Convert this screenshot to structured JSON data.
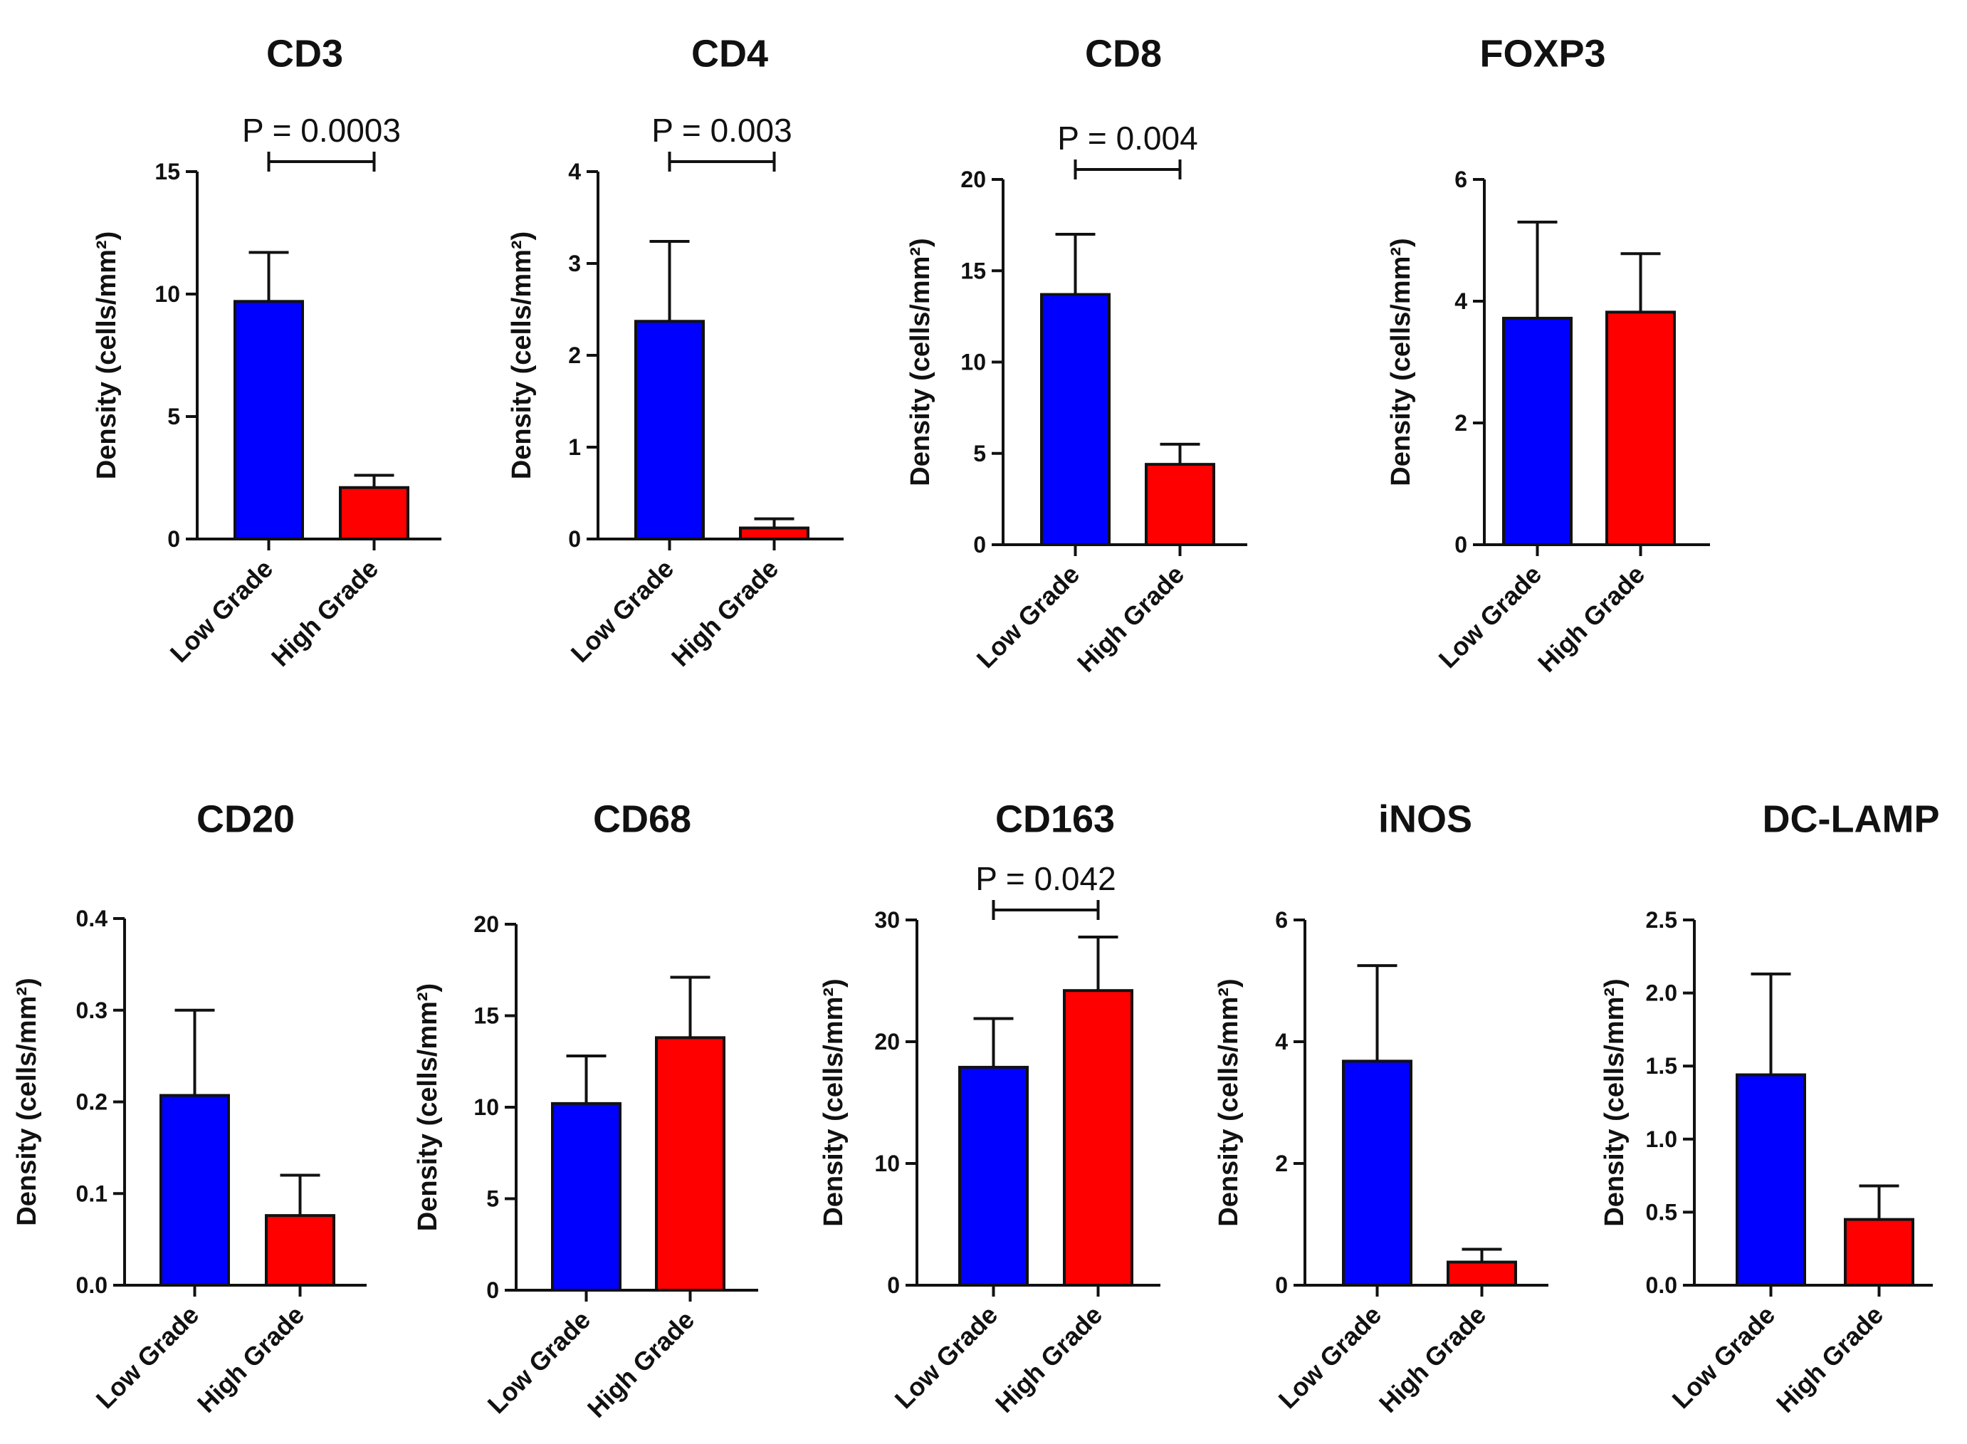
{
  "chart_data": [
    {
      "type": "bar",
      "title": "CD3",
      "ylabel": "Density (cells/mm²)",
      "categories": [
        "Low Grade",
        "High Grade"
      ],
      "values": [
        9.7,
        2.1
      ],
      "errors": [
        2.0,
        0.5
      ],
      "ylim": [
        0,
        15
      ],
      "yticks": [
        0,
        5,
        10,
        15
      ],
      "ytick_labels": [
        "0",
        "5",
        "10",
        "15"
      ],
      "pvalue": "P = 0.0003"
    },
    {
      "type": "bar",
      "title": "CD4",
      "ylabel": "Density (cells/mm²)",
      "categories": [
        "Low Grade",
        "High Grade"
      ],
      "values": [
        2.37,
        0.12
      ],
      "errors": [
        0.87,
        0.1
      ],
      "ylim": [
        0,
        4
      ],
      "yticks": [
        0,
        1,
        2,
        3,
        4
      ],
      "ytick_labels": [
        "0",
        "1",
        "2",
        "3",
        "4"
      ],
      "pvalue": "P = 0.003"
    },
    {
      "type": "bar",
      "title": "CD8",
      "ylabel": "Density (cells/mm²)",
      "categories": [
        "Low Grade",
        "High Grade"
      ],
      "values": [
        13.7,
        4.4
      ],
      "errors": [
        3.3,
        1.1
      ],
      "ylim": [
        0,
        20
      ],
      "yticks": [
        0,
        5,
        10,
        15,
        20
      ],
      "ytick_labels": [
        "0",
        "5",
        "10",
        "15",
        "20"
      ],
      "pvalue": "P = 0.004"
    },
    {
      "type": "bar",
      "title": "FOXP3",
      "ylabel": "Density (cells/mm²)",
      "categories": [
        "Low Grade",
        "High Grade"
      ],
      "values": [
        3.72,
        3.82
      ],
      "errors": [
        1.58,
        0.96
      ],
      "ylim": [
        0,
        6
      ],
      "yticks": [
        0,
        2,
        4,
        6
      ],
      "ytick_labels": [
        "0",
        "2",
        "4",
        "6"
      ],
      "pvalue": ""
    },
    {
      "type": "bar",
      "title": "CD20",
      "ylabel": "Density (cells/mm²)",
      "categories": [
        "Low Grade",
        "High Grade"
      ],
      "values": [
        0.207,
        0.076
      ],
      "errors": [
        0.093,
        0.044
      ],
      "ylim": [
        0,
        0.4
      ],
      "yticks": [
        0,
        0.1,
        0.2,
        0.3,
        0.4
      ],
      "ytick_labels": [
        "0.0",
        "0.1",
        "0.2",
        "0.3",
        "0.4"
      ],
      "pvalue": ""
    },
    {
      "type": "bar",
      "title": "CD68",
      "ylabel": "Density (cells/mm²)",
      "categories": [
        "Low Grade",
        "High Grade"
      ],
      "values": [
        10.2,
        13.8
      ],
      "errors": [
        2.6,
        3.3
      ],
      "ylim": [
        0,
        20
      ],
      "yticks": [
        0,
        5,
        10,
        15,
        20
      ],
      "ytick_labels": [
        "0",
        "5",
        "10",
        "15",
        "20"
      ],
      "pvalue": ""
    },
    {
      "type": "bar",
      "title": "CD163",
      "ylabel": "Density (cells/mm²)",
      "categories": [
        "Low Grade",
        "High Grade"
      ],
      "values": [
        17.9,
        24.2
      ],
      "errors": [
        4.0,
        4.4
      ],
      "ylim": [
        0,
        30
      ],
      "yticks": [
        0,
        10,
        20,
        30
      ],
      "ytick_labels": [
        "0",
        "10",
        "20",
        "30"
      ],
      "pvalue": "P = 0.042"
    },
    {
      "type": "bar",
      "title": "iNOS",
      "ylabel": "Density (cells/mm²)",
      "categories": [
        "Low Grade",
        "High Grade"
      ],
      "values": [
        3.68,
        0.38
      ],
      "errors": [
        1.57,
        0.21
      ],
      "ylim": [
        0,
        6
      ],
      "yticks": [
        0,
        2,
        4,
        6
      ],
      "ytick_labels": [
        "0",
        "2",
        "4",
        "6"
      ],
      "pvalue": ""
    },
    {
      "type": "bar",
      "title": "DC-LAMP",
      "ylabel": "Density (cells/mm²)",
      "categories": [
        "Low Grade",
        "High Grade"
      ],
      "values": [
        1.44,
        0.45
      ],
      "errors": [
        0.69,
        0.23
      ],
      "ylim": [
        0,
        2.5
      ],
      "yticks": [
        0,
        0.5,
        1.0,
        1.5,
        2.0,
        2.5
      ],
      "ytick_labels": [
        "0.0",
        "0.5",
        "1.0",
        "1.5",
        "2.0",
        "2.5"
      ],
      "pvalue": ""
    }
  ],
  "colors": {
    "low_grade": "#0000ff",
    "high_grade": "#ff0000",
    "axis": "#111111"
  }
}
